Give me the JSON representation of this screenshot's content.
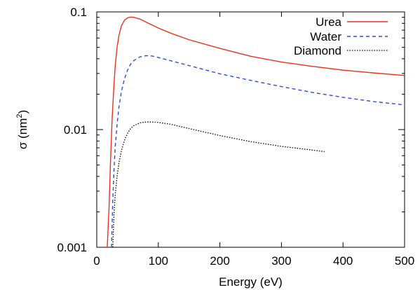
{
  "chart_data": {
    "type": "line",
    "xlabel": "Energy (eV)",
    "ylabel_main": "σ (nm",
    "ylabel_sup": "2",
    "ylabel_tail": ")",
    "xlim": [
      0,
      500
    ],
    "ylim": [
      0.001,
      0.1
    ],
    "y_scale": "log",
    "grid": false,
    "legend_position": "top-right",
    "x_ticks": [
      0,
      100,
      200,
      300,
      400,
      500
    ],
    "x_tick_labels": [
      "0",
      "100",
      "200",
      "300",
      "400",
      "500"
    ],
    "y_ticks": [
      0.001,
      0.01,
      0.1
    ],
    "y_tick_labels": [
      "0.001",
      "0.01",
      "0.1"
    ],
    "series": [
      {
        "name": "Urea",
        "color": "#e8331c",
        "dash": "solid",
        "x": [
          17,
          20,
          22,
          25,
          28,
          30,
          33,
          36,
          40,
          45,
          50,
          55,
          60,
          70,
          80,
          100,
          120,
          150,
          200,
          250,
          300,
          350,
          400,
          450,
          500
        ],
        "y": [
          0.001,
          0.0022,
          0.0048,
          0.0125,
          0.024,
          0.035,
          0.05,
          0.063,
          0.076,
          0.085,
          0.089,
          0.0905,
          0.09,
          0.087,
          0.082,
          0.073,
          0.066,
          0.058,
          0.049,
          0.042,
          0.0375,
          0.0345,
          0.032,
          0.0303,
          0.0288
        ]
      },
      {
        "name": "Water",
        "color": "#2a4fd6",
        "dash": "dashed",
        "x": [
          24,
          26,
          28,
          30,
          33,
          36,
          40,
          45,
          50,
          55,
          60,
          70,
          80,
          90,
          100,
          120,
          150,
          200,
          250,
          300,
          350,
          400,
          450,
          500
        ],
        "y": [
          0.001,
          0.0025,
          0.0045,
          0.0072,
          0.011,
          0.0155,
          0.021,
          0.027,
          0.032,
          0.036,
          0.0385,
          0.0415,
          0.0425,
          0.0422,
          0.041,
          0.0385,
          0.035,
          0.0298,
          0.0262,
          0.0232,
          0.0207,
          0.0188,
          0.0173,
          0.0162
        ]
      },
      {
        "name": "Diamond",
        "color": "#000000",
        "dash": "dotted",
        "x": [
          26,
          28,
          30,
          33,
          36,
          40,
          45,
          50,
          55,
          60,
          70,
          80,
          90,
          100,
          120,
          150,
          200,
          250,
          300,
          350,
          370
        ],
        "y": [
          0.001,
          0.0019,
          0.0028,
          0.004,
          0.0052,
          0.0066,
          0.0081,
          0.0093,
          0.0102,
          0.0108,
          0.0114,
          0.0116,
          0.0116,
          0.0115,
          0.0111,
          0.0102,
          0.0089,
          0.0079,
          0.0072,
          0.0067,
          0.0065
        ]
      }
    ]
  }
}
